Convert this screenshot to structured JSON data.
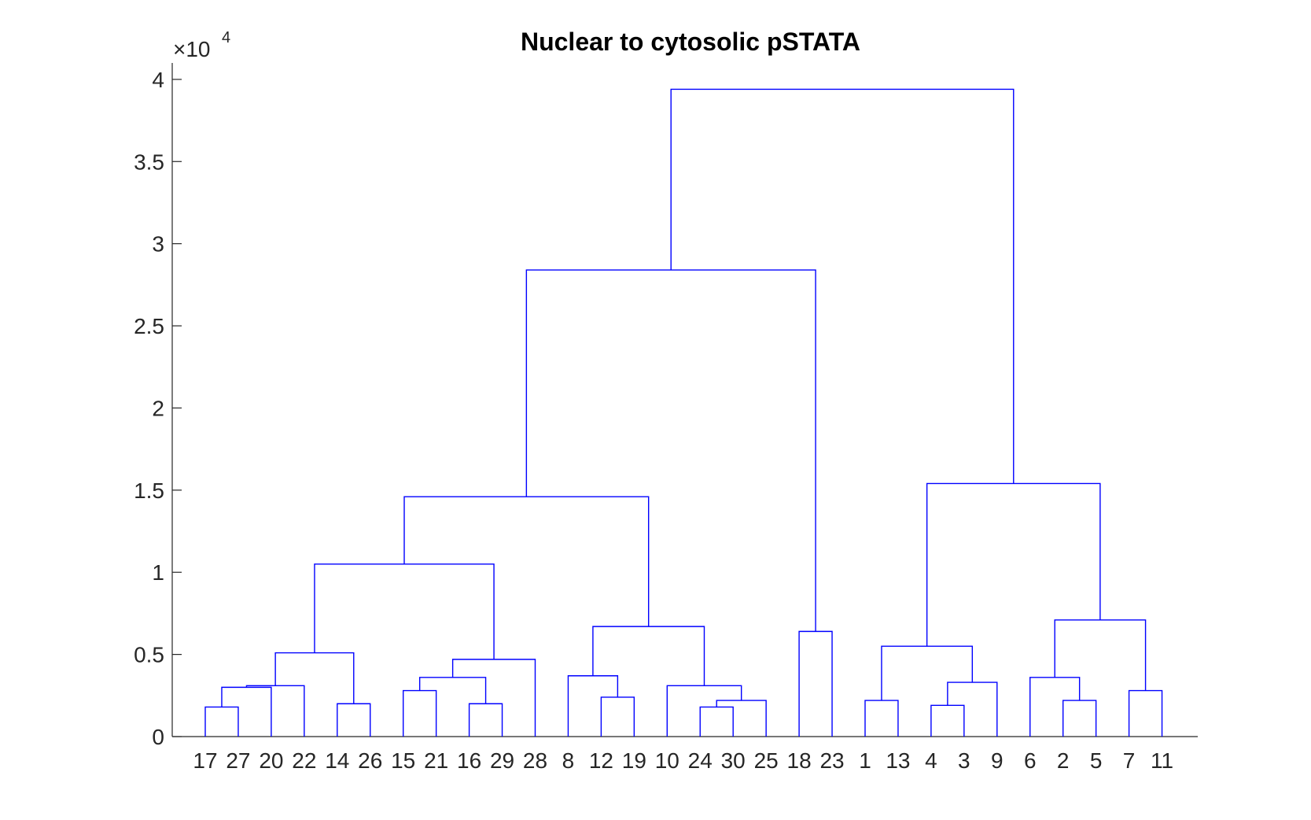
{
  "chart_data": {
    "type": "dendrogram",
    "title": "Nuclear to cytosolic pSTATA",
    "y_exponent_base": "10",
    "y_exponent_power": "4",
    "ylim": [
      0,
      4.1
    ],
    "y_ticks": [
      0,
      0.5,
      1,
      1.5,
      2,
      2.5,
      3,
      3.5,
      4
    ],
    "y_tick_labels": [
      "0",
      "0.5",
      "1",
      "1.5",
      "2",
      "2.5",
      "3",
      "3.5",
      "4"
    ],
    "leaf_order": [
      "17",
      "27",
      "20",
      "22",
      "14",
      "26",
      "15",
      "21",
      "16",
      "29",
      "28",
      "8",
      "12",
      "19",
      "10",
      "24",
      "30",
      "25",
      "18",
      "23",
      "1",
      "13",
      "4",
      "3",
      "9",
      "6",
      "2",
      "5",
      "7",
      "11"
    ],
    "line_color": "#0000ff",
    "merges": [
      {
        "id": "A",
        "left": "17",
        "right": "27",
        "height": 0.18
      },
      {
        "id": "B",
        "left": "A",
        "right": "20",
        "height": 0.3
      },
      {
        "id": "C",
        "left": "B",
        "right": "22",
        "height": 0.31
      },
      {
        "id": "D",
        "left": "14",
        "right": "26",
        "height": 0.2
      },
      {
        "id": "E",
        "left": "C",
        "right": "D",
        "height": 0.51
      },
      {
        "id": "F",
        "left": "15",
        "right": "21",
        "height": 0.28
      },
      {
        "id": "G",
        "left": "16",
        "right": "29",
        "height": 0.2
      },
      {
        "id": "H",
        "left": "F",
        "right": "G",
        "height": 0.36
      },
      {
        "id": "I",
        "left": "H",
        "right": "28",
        "height": 0.47
      },
      {
        "id": "J",
        "left": "E",
        "right": "I",
        "height": 1.05
      },
      {
        "id": "K",
        "left": "12",
        "right": "19",
        "height": 0.24
      },
      {
        "id": "L",
        "left": "8",
        "right": "K",
        "height": 0.37
      },
      {
        "id": "M",
        "left": "24",
        "right": "30",
        "height": 0.18
      },
      {
        "id": "N",
        "left": "M",
        "right": "25",
        "height": 0.22
      },
      {
        "id": "O",
        "left": "10",
        "right": "N",
        "height": 0.31
      },
      {
        "id": "P",
        "left": "L",
        "right": "O",
        "height": 0.67
      },
      {
        "id": "Q",
        "left": "J",
        "right": "P",
        "height": 1.46
      },
      {
        "id": "R",
        "left": "18",
        "right": "23",
        "height": 0.64
      },
      {
        "id": "S",
        "left": "Q",
        "right": "R",
        "height": 2.84
      },
      {
        "id": "T",
        "left": "1",
        "right": "13",
        "height": 0.22
      },
      {
        "id": "U",
        "left": "4",
        "right": "3",
        "height": 0.19
      },
      {
        "id": "V",
        "left": "U",
        "right": "9",
        "height": 0.33
      },
      {
        "id": "W",
        "left": "T",
        "right": "V",
        "height": 0.55
      },
      {
        "id": "X",
        "left": "2",
        "right": "5",
        "height": 0.22
      },
      {
        "id": "Y",
        "left": "6",
        "right": "X",
        "height": 0.36
      },
      {
        "id": "Z",
        "left": "7",
        "right": "11",
        "height": 0.28
      },
      {
        "id": "AA",
        "left": "Y",
        "right": "Z",
        "height": 0.71
      },
      {
        "id": "AB",
        "left": "W",
        "right": "AA",
        "height": 1.54
      },
      {
        "id": "AC",
        "left": "S",
        "right": "AB",
        "height": 3.94
      }
    ]
  }
}
